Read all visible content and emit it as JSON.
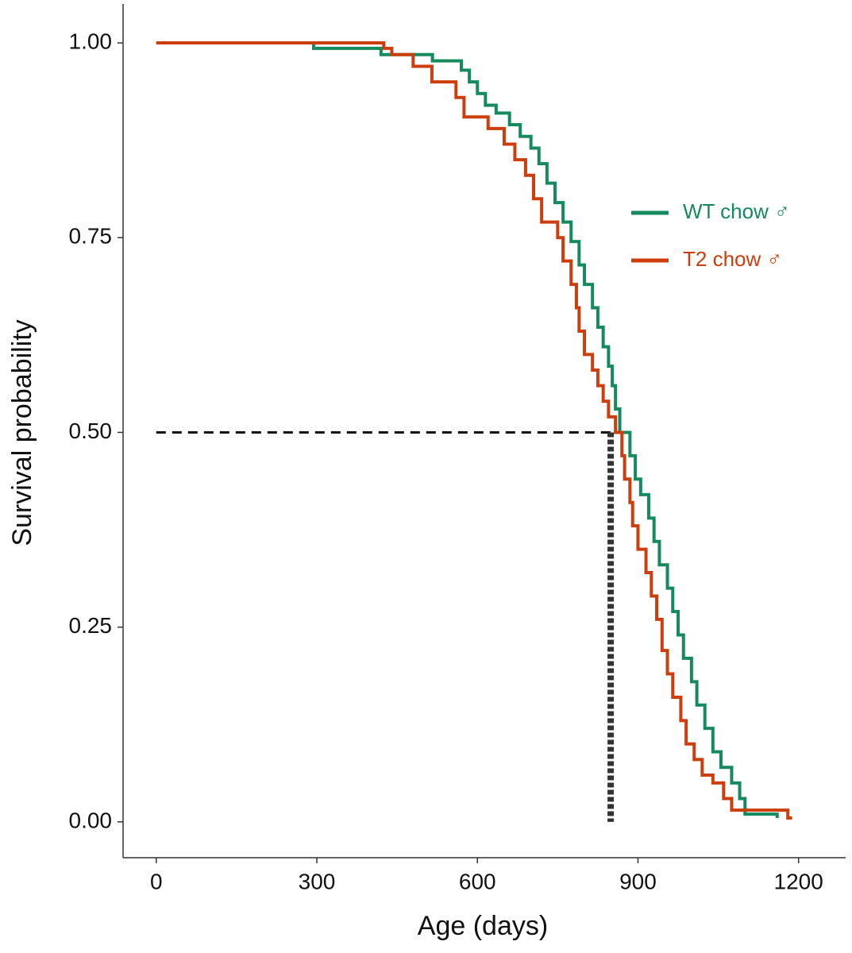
{
  "chart_data": {
    "type": "step-line",
    "x_label": "Age (days)",
    "y_label": "Survival probability",
    "xlim": [
      -62,
      1288
    ],
    "ylim": [
      -0.046,
      1.05
    ],
    "xticks": [
      0,
      300,
      600,
      900,
      1200
    ],
    "yticks": [
      {
        "value": 0,
        "label": "0.00"
      },
      {
        "value": 0.25,
        "label": "0.25"
      },
      {
        "value": 0.5,
        "label": "0.50"
      },
      {
        "value": 0.75,
        "label": "0.75"
      },
      {
        "value": 1,
        "label": "1.00"
      }
    ],
    "legend": "right",
    "reference_lines": {
      "y": 0.5,
      "x": 849
    },
    "series": [
      {
        "name": "WT chow ♂",
        "color": "#158a5e",
        "x": [
          0,
          294,
          420,
          516,
          570,
          585,
          600,
          615,
          635,
          660,
          680,
          700,
          715,
          730,
          745,
          760,
          775,
          790,
          800,
          815,
          825,
          835,
          845,
          852,
          858,
          866,
          885,
          895,
          905,
          920,
          930,
          940,
          955,
          965,
          975,
          985,
          1000,
          1010,
          1025,
          1040,
          1055,
          1075,
          1090,
          1100,
          1160
        ],
        "values": [
          1.0,
          0.993,
          0.985,
          0.977,
          0.965,
          0.95,
          0.935,
          0.92,
          0.91,
          0.895,
          0.88,
          0.865,
          0.845,
          0.82,
          0.795,
          0.77,
          0.745,
          0.715,
          0.69,
          0.66,
          0.635,
          0.61,
          0.585,
          0.56,
          0.53,
          0.5,
          0.47,
          0.44,
          0.42,
          0.39,
          0.36,
          0.33,
          0.3,
          0.27,
          0.24,
          0.21,
          0.18,
          0.15,
          0.12,
          0.09,
          0.07,
          0.05,
          0.03,
          0.01,
          0.005
        ]
      },
      {
        "name": "T2 chow ♂",
        "color": "#cc3e0d",
        "x": [
          0,
          425,
          440,
          480,
          515,
          560,
          575,
          620,
          650,
          670,
          690,
          705,
          720,
          750,
          760,
          775,
          785,
          790,
          800,
          815,
          825,
          835,
          845,
          858,
          870,
          875,
          885,
          890,
          900,
          915,
          925,
          935,
          945,
          955,
          965,
          980,
          990,
          1005,
          1020,
          1040,
          1060,
          1075,
          1180,
          1188
        ],
        "values": [
          1.0,
          0.993,
          0.985,
          0.97,
          0.95,
          0.93,
          0.905,
          0.89,
          0.87,
          0.85,
          0.83,
          0.8,
          0.77,
          0.75,
          0.72,
          0.69,
          0.66,
          0.63,
          0.6,
          0.58,
          0.56,
          0.54,
          0.52,
          0.5,
          0.47,
          0.44,
          0.41,
          0.38,
          0.35,
          0.32,
          0.29,
          0.26,
          0.22,
          0.19,
          0.16,
          0.13,
          0.1,
          0.08,
          0.06,
          0.05,
          0.03,
          0.015,
          0.005,
          0.005
        ]
      }
    ]
  }
}
